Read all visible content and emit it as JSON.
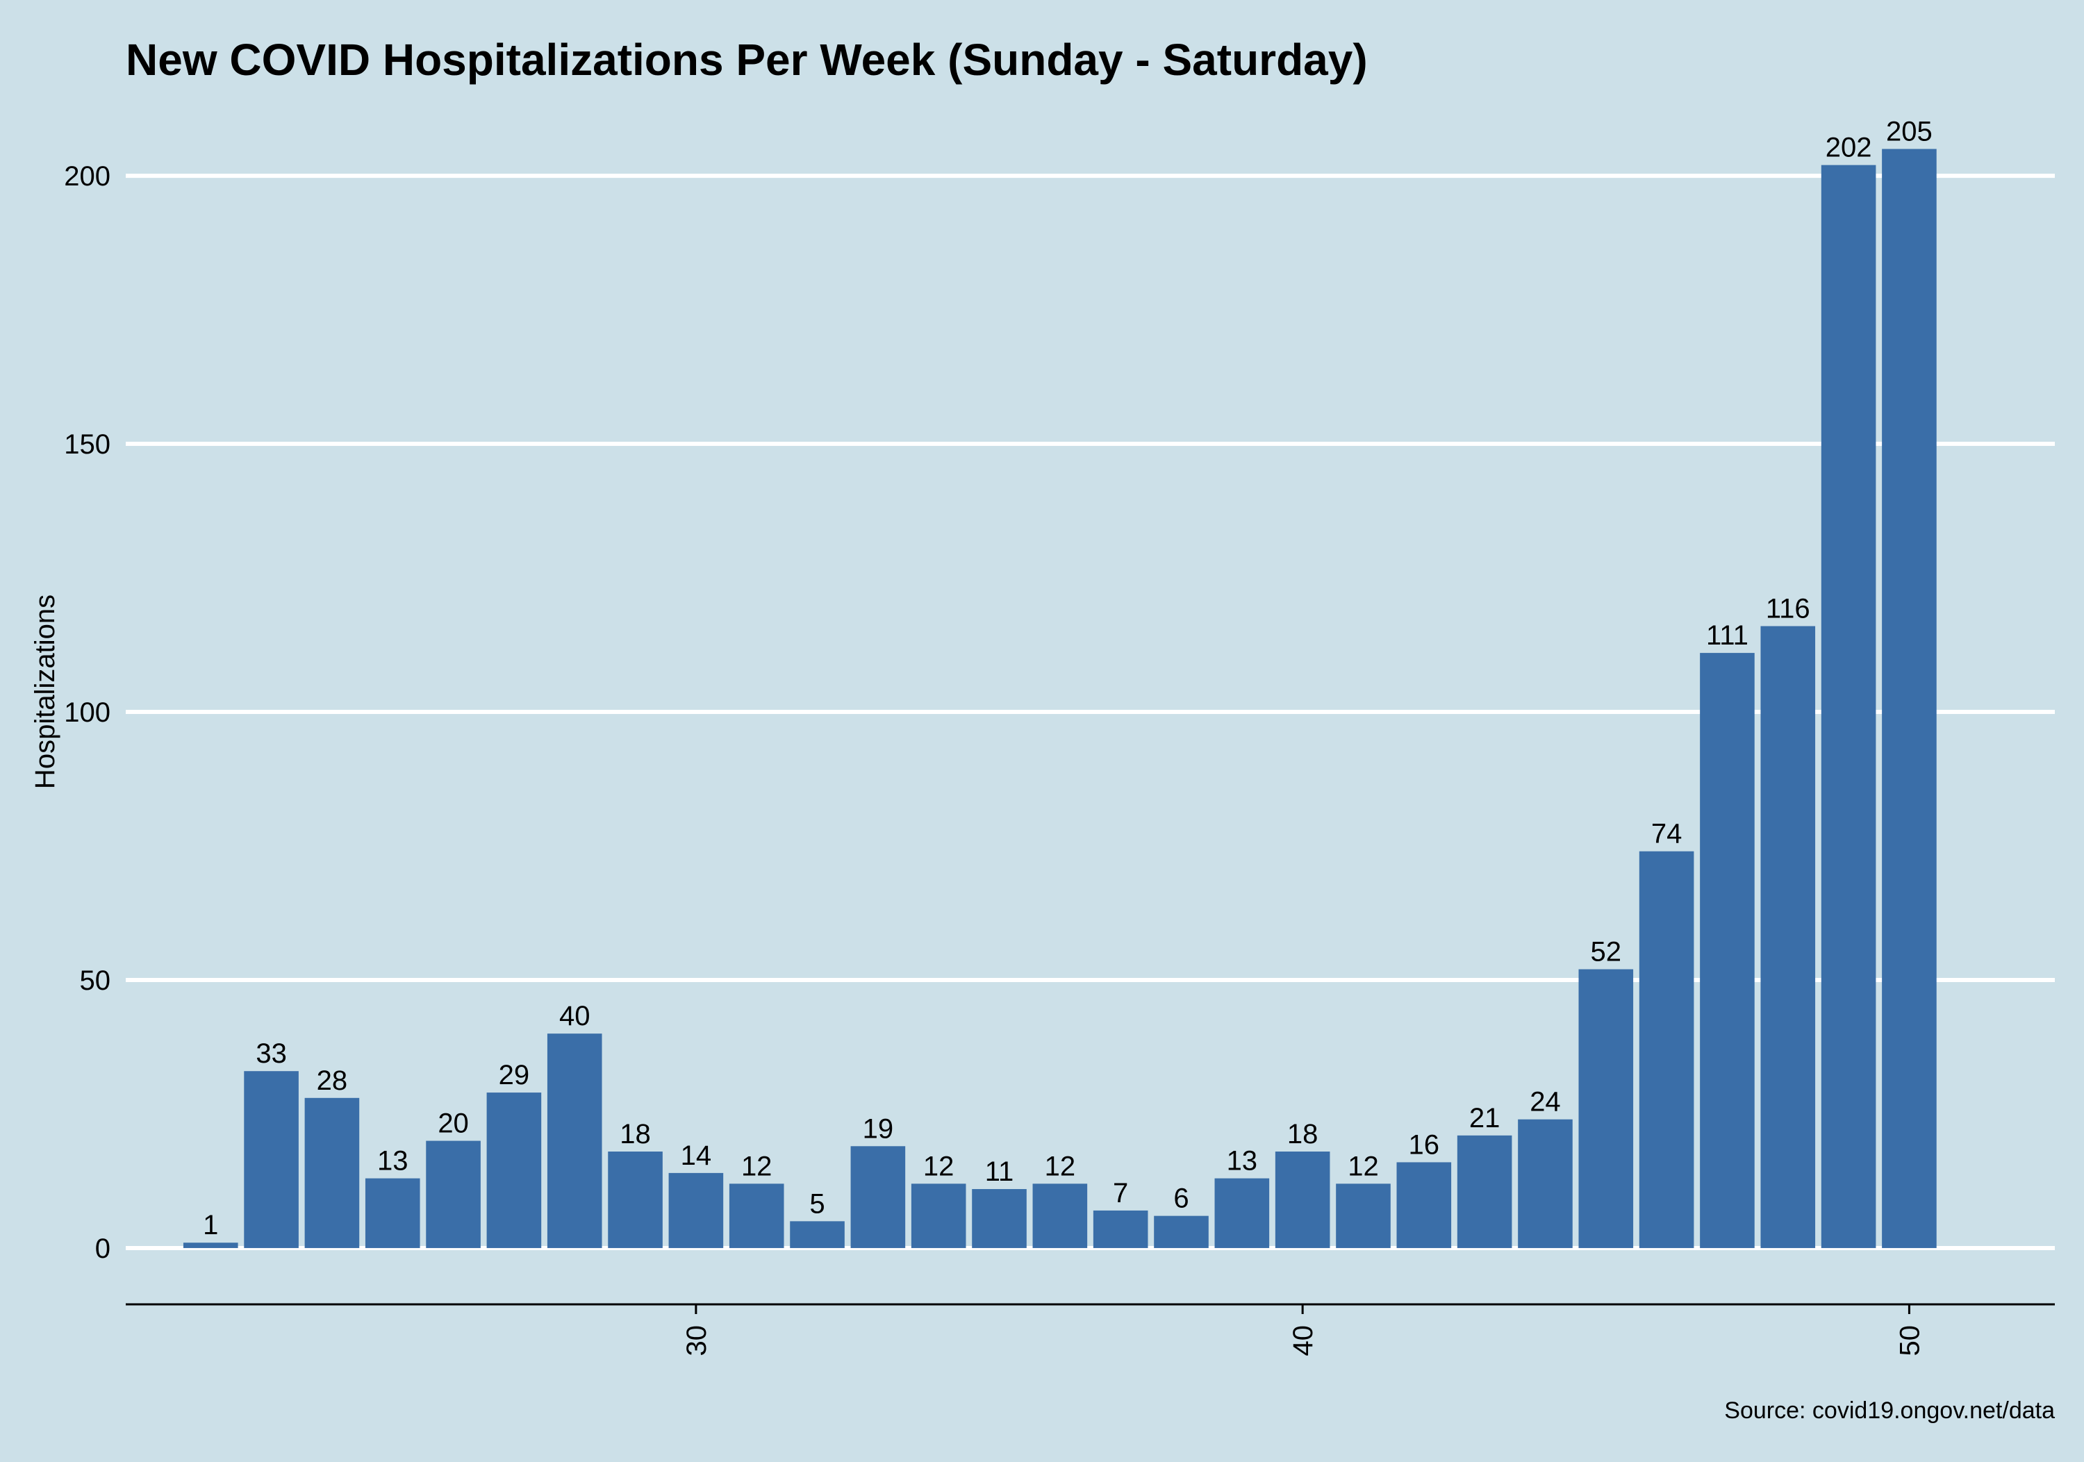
{
  "colors": {
    "background": "#cce0e8",
    "bar": "#3a6ea8",
    "grid": "#ffffff",
    "text": "#000000"
  },
  "chart_data": {
    "type": "bar",
    "title": "New COVID Hospitalizations Per Week (Sunday - Saturday)",
    "xlabel": "",
    "ylabel": "Hospitalizations",
    "caption": "Source: covid19.ongov.net/data",
    "x": [
      22,
      23,
      24,
      25,
      26,
      27,
      28,
      29,
      30,
      31,
      32,
      33,
      34,
      35,
      36,
      37,
      38,
      39,
      40,
      41,
      42,
      43,
      44,
      45,
      46,
      47,
      48,
      49,
      50
    ],
    "values": [
      1,
      33,
      28,
      13,
      20,
      29,
      40,
      18,
      14,
      12,
      5,
      19,
      12,
      11,
      12,
      7,
      6,
      13,
      18,
      12,
      16,
      21,
      24,
      52,
      74,
      111,
      116,
      202,
      205
    ],
    "xlim": [
      20.6,
      52.4
    ],
    "ylim": [
      -10.5,
      214
    ],
    "yticks": [
      0,
      50,
      100,
      150,
      200
    ],
    "xticks": [
      30,
      40,
      50
    ],
    "x_tick_labels_rotated": true,
    "grid": "horizontal major",
    "legend": "none"
  }
}
